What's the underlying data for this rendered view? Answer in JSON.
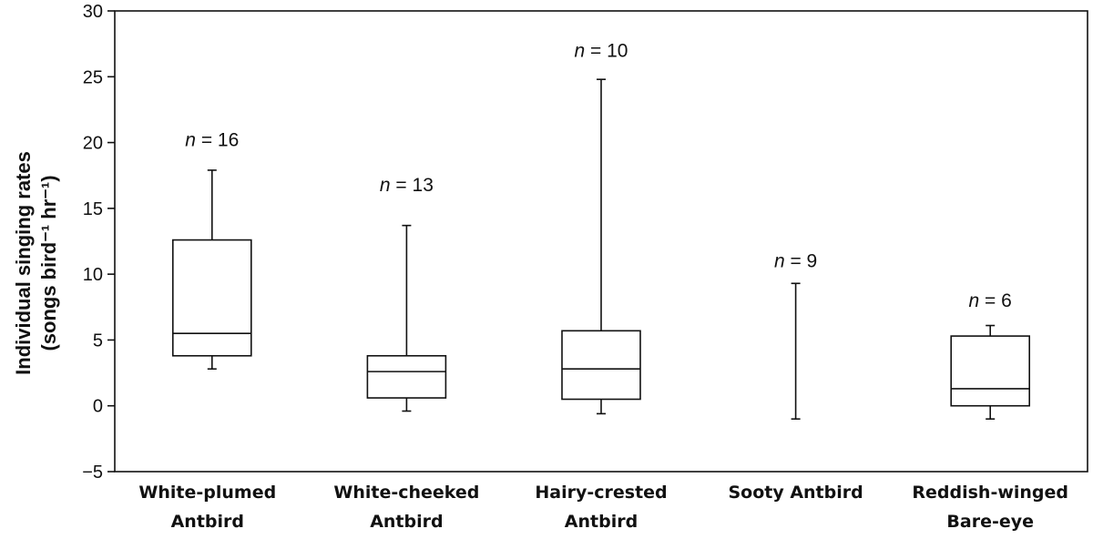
{
  "chart_data": {
    "type": "box",
    "title": "",
    "ylabel_line1": "Individual singing rates",
    "ylabel_line2": "(songs bird⁻¹ hr⁻¹)",
    "xlabel": "",
    "ylim": [
      -5,
      30
    ],
    "yticks": [
      {
        "value": 30,
        "label": "30"
      },
      {
        "value": 25,
        "label": "25"
      },
      {
        "value": 20,
        "label": "20"
      },
      {
        "value": 15,
        "label": "15"
      },
      {
        "value": 10,
        "label": "10"
      },
      {
        "value": 5,
        "label": "5"
      },
      {
        "value": 0,
        "label": "0"
      },
      {
        "value": -5,
        "label": "−5"
      }
    ],
    "grid": false,
    "categories": [
      {
        "line1": "White-plumed",
        "line2": "Antbird"
      },
      {
        "line1": "White-cheeked",
        "line2": "Antbird"
      },
      {
        "line1": "Hairy-crested",
        "line2": "Antbird"
      },
      {
        "line1": "Sooty Antbird",
        "line2": ""
      },
      {
        "line1": "Reddish-winged",
        "line2": "Bare-eye"
      }
    ],
    "boxes": [
      {
        "whisker_low": 2.8,
        "q1": 3.8,
        "median": 5.5,
        "q3": 12.6,
        "whisker_high": 17.9,
        "n_italic": "n",
        "n_rest": " = 16",
        "n_label_value": 20.2
      },
      {
        "whisker_low": -0.4,
        "q1": 0.6,
        "median": 2.6,
        "q3": 3.8,
        "whisker_high": 13.7,
        "n_italic": "n",
        "n_rest": " = 13",
        "n_label_value": 16.8
      },
      {
        "whisker_low": -0.6,
        "q1": 0.5,
        "median": 2.8,
        "q3": 5.7,
        "whisker_high": 24.8,
        "n_italic": "n",
        "n_rest": " = 10",
        "n_label_value": 27.0
      },
      {
        "whisker_low": -1.0,
        "q1": null,
        "median": null,
        "q3": null,
        "whisker_high": 9.3,
        "n_italic": "n",
        "n_rest": " = 9",
        "n_label_value": 11.0
      },
      {
        "whisker_low": -1.0,
        "q1": 0.0,
        "median": 1.3,
        "q3": 5.3,
        "whisker_high": 6.1,
        "n_italic": "n",
        "n_rest": " = 6",
        "n_label_value": 8.0
      }
    ]
  }
}
